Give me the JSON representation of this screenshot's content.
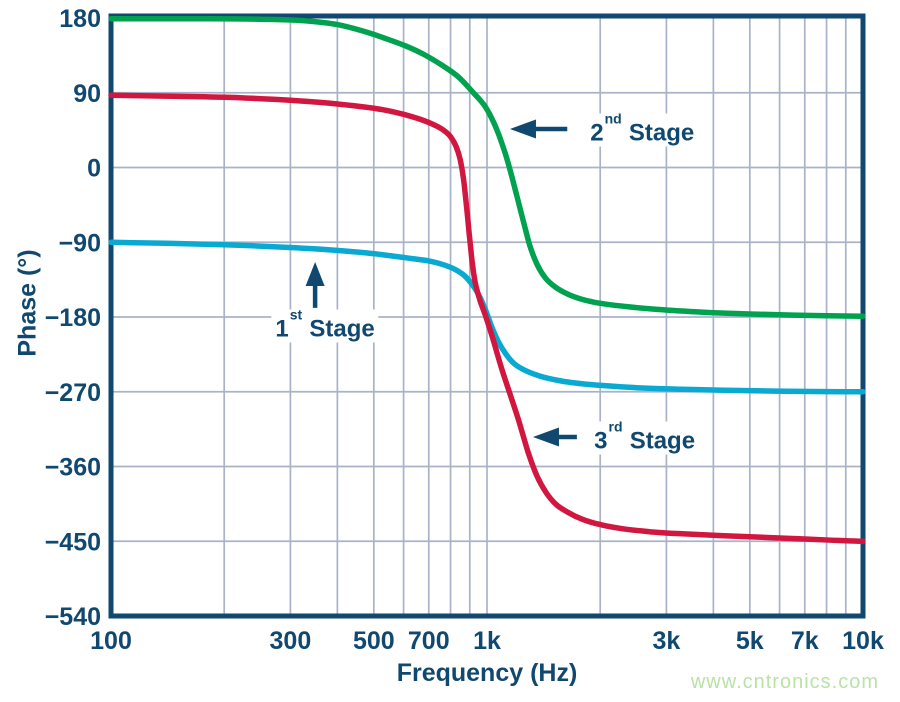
{
  "colors": {
    "navy": "#10486f",
    "grid": "#aab2c9",
    "background": "#ffffff",
    "green": "#00a24f",
    "red": "#d1173f",
    "cyan": "#0aa9d2",
    "watermark_green": "#b9e2a7"
  },
  "watermark": {
    "text": "www.cntronics.com"
  },
  "chart_data": {
    "type": "line",
    "title": "",
    "xlabel": "Frequency (Hz)",
    "ylabel": "Phase (°)",
    "x_scale": "log",
    "x_range": [
      100,
      10000
    ],
    "y_range": [
      -540,
      180
    ],
    "grid": true,
    "legend_position": "none",
    "x_ticks": [
      {
        "f": 100,
        "label": "100"
      },
      {
        "f": 300,
        "label": "300"
      },
      {
        "f": 500,
        "label": "500"
      },
      {
        "f": 700,
        "label": "700"
      },
      {
        "f": 1000,
        "label": "1k"
      },
      {
        "f": 3000,
        "label": "3k"
      },
      {
        "f": 5000,
        "label": "5k"
      },
      {
        "f": 7000,
        "label": "7k"
      },
      {
        "f": 10000,
        "label": "10k"
      }
    ],
    "y_ticks": [
      {
        "v": 180,
        "label": "180"
      },
      {
        "v": 90,
        "label": "90"
      },
      {
        "v": 0,
        "label": "0"
      },
      {
        "v": -90,
        "label": "−90"
      },
      {
        "v": -180,
        "label": "−180"
      },
      {
        "v": -270,
        "label": "−270"
      },
      {
        "v": -360,
        "label": "−360"
      },
      {
        "v": -450,
        "label": "−450"
      },
      {
        "v": -540,
        "label": "−540"
      }
    ],
    "x_grid": [
      200,
      300,
      400,
      500,
      600,
      700,
      800,
      900,
      1000,
      2000,
      3000,
      4000,
      5000,
      6000,
      7000,
      8000,
      9000
    ],
    "y_grid": [
      90,
      0,
      -90,
      -180,
      -270,
      -360,
      -450
    ],
    "series": [
      {
        "name": "1st Stage",
        "color": "#0aa9d2",
        "points": [
          [
            100,
            -90
          ],
          [
            140,
            -91.3
          ],
          [
            200,
            -93
          ],
          [
            270,
            -95.3
          ],
          [
            350,
            -98
          ],
          [
            430,
            -101
          ],
          [
            500,
            -103.8
          ],
          [
            570,
            -107
          ],
          [
            640,
            -110
          ],
          [
            700,
            -112.5
          ],
          [
            760,
            -116.5
          ],
          [
            820,
            -122.5
          ],
          [
            870,
            -130
          ],
          [
            910,
            -140
          ],
          [
            950,
            -153
          ],
          [
            990,
            -171
          ],
          [
            1030,
            -192
          ],
          [
            1070,
            -209
          ],
          [
            1120,
            -224
          ],
          [
            1180,
            -236
          ],
          [
            1260,
            -244
          ],
          [
            1380,
            -251
          ],
          [
            1550,
            -256.5
          ],
          [
            1800,
            -260.5
          ],
          [
            2100,
            -263
          ],
          [
            2600,
            -265.5
          ],
          [
            3300,
            -267
          ],
          [
            4300,
            -268.2
          ],
          [
            5800,
            -269.2
          ],
          [
            8000,
            -269.8
          ],
          [
            10000,
            -270
          ]
        ]
      },
      {
        "name": "2nd Stage",
        "color": "#00a24f",
        "points": [
          [
            100,
            179.2
          ],
          [
            180,
            179
          ],
          [
            250,
            178.5
          ],
          [
            320,
            177
          ],
          [
            400,
            172
          ],
          [
            470,
            164
          ],
          [
            540,
            155
          ],
          [
            610,
            146
          ],
          [
            680,
            136
          ],
          [
            760,
            123
          ],
          [
            840,
            109
          ],
          [
            920,
            90
          ],
          [
            990,
            73
          ],
          [
            1040,
            55
          ],
          [
            1080,
            37
          ],
          [
            1120,
            16
          ],
          [
            1160,
            -8
          ],
          [
            1200,
            -34
          ],
          [
            1250,
            -65
          ],
          [
            1300,
            -94
          ],
          [
            1360,
            -117
          ],
          [
            1430,
            -133
          ],
          [
            1520,
            -144
          ],
          [
            1650,
            -153
          ],
          [
            1800,
            -159
          ],
          [
            2000,
            -163.5
          ],
          [
            2300,
            -167
          ],
          [
            2700,
            -170
          ],
          [
            3300,
            -172.8
          ],
          [
            4000,
            -174.8
          ],
          [
            5000,
            -176.4
          ],
          [
            6500,
            -177.7
          ],
          [
            8000,
            -178.4
          ],
          [
            10000,
            -179
          ]
        ]
      },
      {
        "name": "3rd Stage",
        "color": "#d1173f",
        "points": [
          [
            100,
            87
          ],
          [
            160,
            85.5
          ],
          [
            220,
            84
          ],
          [
            300,
            81
          ],
          [
            380,
            77.5
          ],
          [
            460,
            73.5
          ],
          [
            530,
            69.5
          ],
          [
            600,
            64
          ],
          [
            660,
            58.5
          ],
          [
            710,
            53
          ],
          [
            760,
            46
          ],
          [
            800,
            37
          ],
          [
            828,
            25
          ],
          [
            848,
            10
          ],
          [
            865,
            -12
          ],
          [
            880,
            -42
          ],
          [
            897,
            -80
          ],
          [
            912,
            -112
          ],
          [
            930,
            -138
          ],
          [
            955,
            -158
          ],
          [
            990,
            -178
          ],
          [
            1035,
            -205
          ],
          [
            1090,
            -240
          ],
          [
            1150,
            -272
          ],
          [
            1215,
            -305
          ],
          [
            1285,
            -342
          ],
          [
            1360,
            -372
          ],
          [
            1440,
            -392
          ],
          [
            1530,
            -406
          ],
          [
            1640,
            -415
          ],
          [
            1780,
            -423
          ],
          [
            2000,
            -430
          ],
          [
            2300,
            -435
          ],
          [
            2700,
            -438.5
          ],
          [
            3300,
            -441
          ],
          [
            4200,
            -443.2
          ],
          [
            5400,
            -445.3
          ],
          [
            7000,
            -447.3
          ],
          [
            8500,
            -449
          ],
          [
            10000,
            -450
          ]
        ]
      }
    ],
    "annotations": [
      {
        "id": "first-stage",
        "num": "1",
        "sup": "st",
        "word": "Stage",
        "align": "center",
        "text_f": 371,
        "text_deg": -190.8,
        "arrow": {
          "dir": "up",
          "tip_f": 349,
          "tip_deg": -113.8,
          "tail_f": 349,
          "tail_deg": -169
        }
      },
      {
        "id": "second-stage",
        "num": "2",
        "sup": "nd",
        "word": "Stage",
        "align": "left",
        "text_f": 1836,
        "text_deg": 45.2,
        "arrow": {
          "dir": "left",
          "tip_f": 1151,
          "tip_deg": 46.4,
          "tail_f": 1635,
          "tail_deg": 46.4
        }
      },
      {
        "id": "third-stage",
        "num": "3",
        "sup": "rd",
        "word": "Stage",
        "align": "left",
        "text_f": 1881,
        "text_deg": -325.7,
        "arrow": {
          "dir": "left",
          "tip_f": 1325,
          "tip_deg": -324.5,
          "tail_f": 1734,
          "tail_deg": -324.5
        }
      }
    ]
  }
}
